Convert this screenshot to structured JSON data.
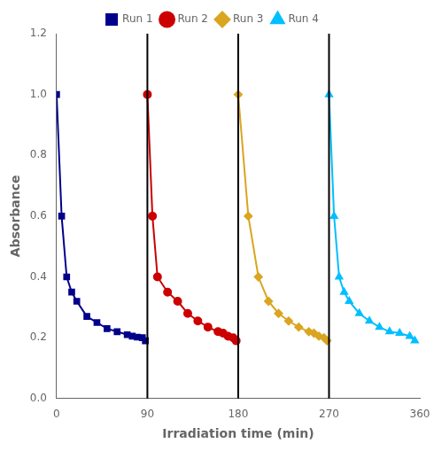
{
  "chart_data": {
    "type": "line",
    "xlabel": "Irradiation time (min)",
    "ylabel": "Absorbance",
    "series": [
      {
        "name": "Run 1",
        "color": "#00008B",
        "marker": "square",
        "x": [
          0,
          5,
          10,
          15,
          20,
          30,
          40,
          50,
          60,
          70,
          75,
          80,
          85,
          88
        ],
        "values": [
          1.0,
          0.6,
          0.4,
          0.35,
          0.32,
          0.27,
          0.25,
          0.23,
          0.22,
          0.21,
          0.205,
          0.202,
          0.2,
          0.19
        ]
      },
      {
        "name": "Run 2",
        "color": "#CC0000",
        "marker": "circle",
        "x": [
          90,
          95,
          100,
          110,
          120,
          130,
          140,
          150,
          160,
          165,
          170,
          175,
          178
        ],
        "values": [
          1.0,
          0.6,
          0.4,
          0.35,
          0.32,
          0.28,
          0.255,
          0.235,
          0.22,
          0.215,
          0.205,
          0.2,
          0.19
        ]
      },
      {
        "name": "Run 3",
        "color": "#DAA520",
        "marker": "diamond",
        "x": [
          180,
          190,
          200,
          210,
          220,
          230,
          240,
          250,
          255,
          260,
          265,
          268
        ],
        "values": [
          1.0,
          0.6,
          0.4,
          0.32,
          0.28,
          0.255,
          0.235,
          0.22,
          0.215,
          0.205,
          0.2,
          0.19
        ]
      },
      {
        "name": "Run 4",
        "color": "#00BFFF",
        "marker": "triangle",
        "x": [
          270,
          275,
          280,
          285,
          290,
          300,
          310,
          320,
          330,
          340,
          350,
          355
        ],
        "values": [
          1.0,
          0.6,
          0.4,
          0.35,
          0.32,
          0.28,
          0.255,
          0.235,
          0.22,
          0.215,
          0.205,
          0.19
        ]
      }
    ],
    "vlines": [
      90,
      180,
      270
    ],
    "xlim": [
      0,
      360
    ],
    "ylim": [
      0,
      1.2
    ],
    "xticks": [
      0,
      90,
      180,
      270,
      360
    ],
    "yticks": [
      {
        "value": 0,
        "label": "0.0"
      },
      0.2,
      0.4,
      0.6,
      0.8,
      {
        "value": 1.0,
        "label": "1.0"
      },
      1.2
    ],
    "grid": false,
    "legend": "top"
  }
}
